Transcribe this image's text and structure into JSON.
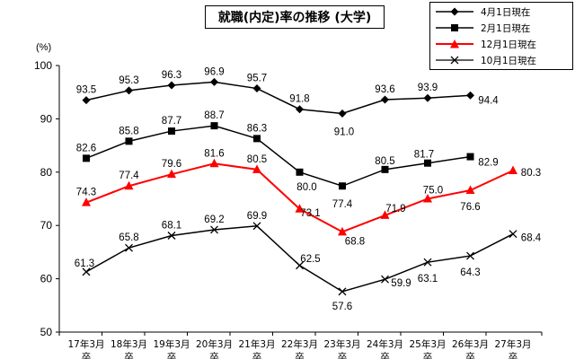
{
  "chart_data": {
    "type": "line",
    "title": "就職(内定)率の推移 (大学)",
    "ylabel": "(%)",
    "ylim": [
      50,
      100
    ],
    "yticks": [
      50,
      60,
      70,
      80,
      90,
      100
    ],
    "grid": false,
    "legend_placement": "top-right",
    "categories": [
      "17年3月\n卒",
      "18年3月\n卒",
      "19年3月\n卒",
      "20年3月\n卒",
      "21年3月\n卒",
      "22年3月\n卒",
      "23年3月\n卒",
      "24年3月\n卒",
      "25年3月\n卒",
      "26年3月\n卒",
      "27年3月\n卒"
    ],
    "series": [
      {
        "name": "4月1日現在",
        "marker": "diamond",
        "color": "#000000",
        "values": [
          93.5,
          95.3,
          96.3,
          96.9,
          95.7,
          91.8,
          91.0,
          93.6,
          93.9,
          94.4,
          null
        ]
      },
      {
        "name": "2月1日現在",
        "marker": "square",
        "color": "#000000",
        "values": [
          82.6,
          85.8,
          87.7,
          88.7,
          86.3,
          80.0,
          77.4,
          80.5,
          81.7,
          82.9,
          null
        ]
      },
      {
        "name": "12月1日現在",
        "marker": "triangle",
        "color": "#ff0000",
        "values": [
          74.3,
          77.4,
          79.6,
          81.6,
          80.5,
          73.1,
          68.8,
          71.9,
          75.0,
          76.6,
          80.3
        ]
      },
      {
        "name": "10月1日現在",
        "marker": "x",
        "color": "#000000",
        "values": [
          61.3,
          65.8,
          68.1,
          69.2,
          69.9,
          62.5,
          57.6,
          59.9,
          63.1,
          64.3,
          68.4
        ]
      }
    ]
  }
}
